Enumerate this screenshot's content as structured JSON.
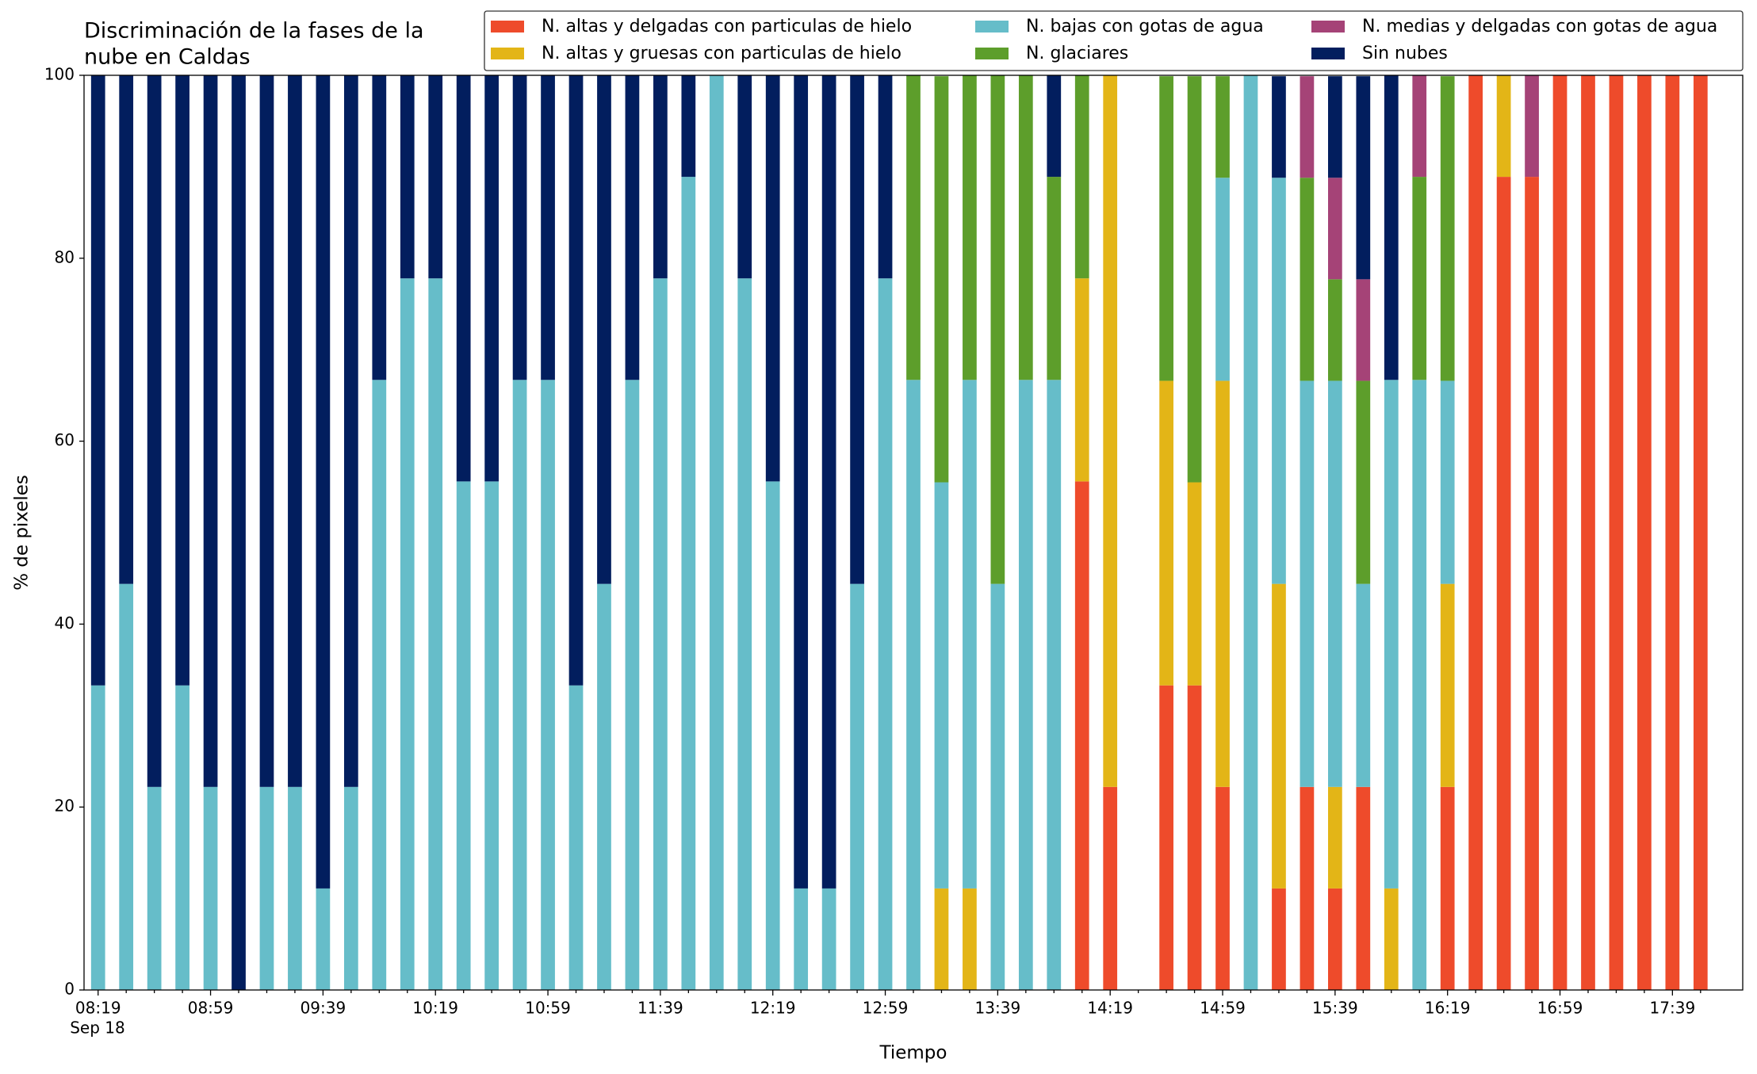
{
  "chart_data": {
    "type": "stacked_bar",
    "title": [
      "Discriminación de la fases de la",
      "nube en Caldas"
    ],
    "xlabel": "Tiempo",
    "ylabel": "% de pixeles",
    "date": "Sep 18",
    "categories": [
      "08:19",
      null,
      null,
      null,
      "08:59",
      null,
      null,
      null,
      "09:39",
      null,
      null,
      null,
      "10:19",
      null,
      null,
      null,
      "10:59",
      null,
      null,
      null,
      "11:39",
      null,
      null,
      null,
      "12:19",
      null,
      null,
      null,
      "12:59",
      null,
      null,
      null,
      "13:39",
      null,
      null,
      null,
      "14:19",
      null,
      null,
      null,
      "14:59",
      null,
      null,
      null,
      "15:39",
      null,
      null,
      null,
      "16:19",
      null,
      null,
      null,
      "16:59",
      null,
      null,
      null,
      "17:39",
      null
    ],
    "ylim": [
      0,
      100
    ],
    "yticks": [
      0,
      20,
      40,
      60,
      80,
      100
    ],
    "grid": false,
    "legend": "top",
    "series": [
      {
        "name": "N. altas y delgadas con particulas de hielo",
        "color": "#ee4b2b",
        "values": [
          0,
          0,
          0,
          0,
          0,
          0,
          0,
          0,
          0,
          0,
          0,
          0,
          0,
          0,
          0,
          0,
          0,
          0,
          0,
          0,
          0,
          0,
          0,
          0,
          0,
          0,
          0,
          0,
          0,
          0,
          0,
          0,
          0,
          0,
          0,
          55.6,
          22.2,
          0,
          33.3,
          33.3,
          22.2,
          0,
          11.1,
          22.2,
          11.1,
          22.2,
          0,
          0,
          22.2,
          100,
          88.9,
          88.9,
          100,
          100,
          100,
          100,
          100,
          100
        ]
      },
      {
        "name": "N. altas y gruesas con particulas de hielo",
        "color": "#e3b517",
        "values": [
          0,
          0,
          0,
          0,
          0,
          0,
          0,
          0,
          0,
          0,
          0,
          0,
          0,
          0,
          0,
          0,
          0,
          0,
          0,
          0,
          0,
          0,
          0,
          0,
          0,
          0,
          0,
          0,
          0,
          0,
          11.1,
          11.1,
          0,
          0,
          0,
          22.2,
          77.8,
          0,
          33.3,
          22.2,
          44.4,
          0,
          33.3,
          0,
          11.1,
          0,
          11.1,
          0,
          22.2,
          0,
          11.1,
          0,
          0,
          0,
          0,
          0,
          0,
          0
        ]
      },
      {
        "name": "N. bajas con gotas de agua",
        "color": "#66bdc9",
        "values": [
          33.3,
          44.4,
          22.2,
          33.3,
          22.2,
          0,
          22.2,
          22.2,
          11.1,
          22.2,
          66.7,
          77.8,
          77.8,
          55.6,
          55.6,
          66.7,
          66.7,
          33.3,
          44.4,
          66.7,
          77.8,
          88.9,
          100,
          77.8,
          55.6,
          11.1,
          11.1,
          44.4,
          77.8,
          66.7,
          44.4,
          55.6,
          44.4,
          66.7,
          66.7,
          0,
          0,
          0,
          0,
          0,
          22.2,
          100,
          44.4,
          44.4,
          44.4,
          22.2,
          55.6,
          66.7,
          22.2,
          0,
          0,
          0,
          0,
          0,
          0,
          0,
          0,
          0
        ]
      },
      {
        "name": "N. glaciares",
        "color": "#5d9e2b",
        "values": [
          0,
          0,
          0,
          0,
          0,
          0,
          0,
          0,
          0,
          0,
          0,
          0,
          0,
          0,
          0,
          0,
          0,
          0,
          0,
          0,
          0,
          0,
          0,
          0,
          0,
          0,
          0,
          0,
          0,
          33.3,
          44.4,
          33.3,
          55.6,
          33.3,
          22.2,
          22.2,
          0,
          0,
          33.3,
          44.4,
          11.1,
          0,
          0,
          22.2,
          11.1,
          22.2,
          0,
          22.2,
          33.3,
          0,
          0,
          0,
          0,
          0,
          0,
          0,
          0,
          0
        ]
      },
      {
        "name": "N. medias y delgadas con gotas de agua",
        "color": "#a54377",
        "values": [
          0,
          0,
          0,
          0,
          0,
          0,
          0,
          0,
          0,
          0,
          0,
          0,
          0,
          0,
          0,
          0,
          0,
          0,
          0,
          0,
          0,
          0,
          0,
          0,
          0,
          0,
          0,
          0,
          0,
          0,
          0,
          0,
          0,
          0,
          0,
          0,
          0,
          0,
          0,
          0,
          0,
          0,
          0,
          11.1,
          11.1,
          11.1,
          0,
          11.1,
          0,
          0,
          0,
          11.1,
          0,
          0,
          0,
          0,
          0,
          0
        ]
      },
      {
        "name": "Sin nubes",
        "color": "#021e5e",
        "values": [
          66.7,
          55.6,
          77.8,
          66.7,
          77.8,
          100,
          77.8,
          77.8,
          88.9,
          77.8,
          33.3,
          22.2,
          22.2,
          44.4,
          44.4,
          33.3,
          33.3,
          66.7,
          55.6,
          33.3,
          22.2,
          11.1,
          0,
          22.2,
          44.4,
          88.9,
          88.9,
          55.6,
          22.2,
          0,
          0,
          0,
          0,
          0,
          11.1,
          0,
          0,
          0,
          0,
          0,
          0,
          0,
          11.1,
          0,
          11.1,
          22.2,
          33.3,
          0,
          0,
          0,
          0,
          0,
          0,
          0,
          0,
          0,
          0,
          0
        ]
      }
    ]
  }
}
